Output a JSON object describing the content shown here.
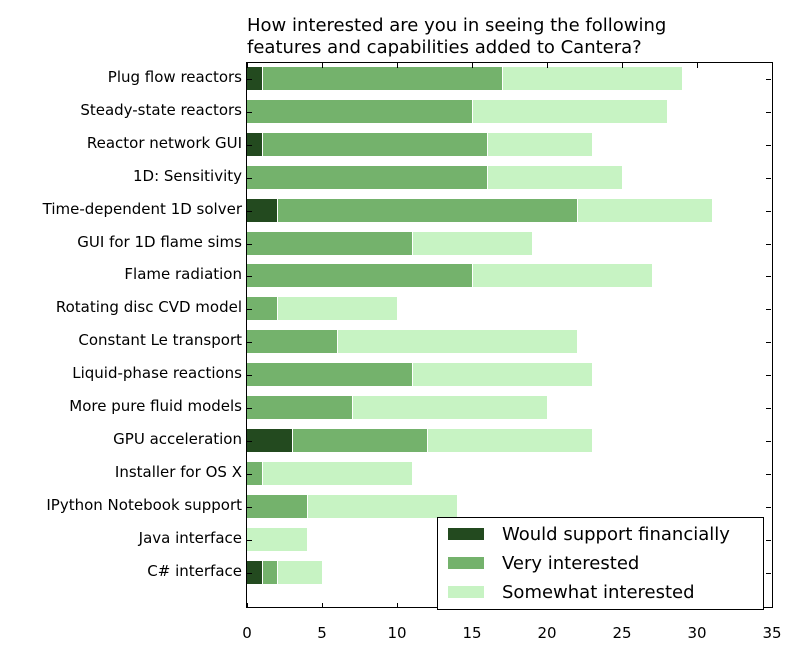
{
  "chart_data": {
    "type": "bar",
    "orientation": "horizontal",
    "stacked": true,
    "title": "How interested are you in seeing the following\nfeatures and capabilities added to Cantera?",
    "xlabel": "",
    "ylabel": "",
    "xlim": [
      0,
      35
    ],
    "xticks": [
      0,
      5,
      10,
      15,
      20,
      25,
      30,
      35
    ],
    "grid": false,
    "legend_position": "lower right",
    "categories": [
      "Plug flow reactors",
      "Steady-state reactors",
      "Reactor network GUI",
      "1D: Sensitivity",
      "Time-dependent 1D solver",
      "GUI for 1D flame sims",
      "Flame radiation",
      "Rotating disc CVD model",
      "Constant Le transport",
      "Liquid-phase reactions",
      "More pure fluid models",
      "GPU acceleration",
      "Installer for OS X",
      "IPython Notebook support",
      "Java interface",
      "C# interface"
    ],
    "series": [
      {
        "name": "Would support financially",
        "color": "#234a1f",
        "values": [
          1,
          0,
          1,
          0,
          2,
          0,
          0,
          0,
          0,
          0,
          0,
          3,
          0,
          0,
          0,
          1
        ]
      },
      {
        "name": "Very interested",
        "color": "#74b26c",
        "values": [
          16,
          15,
          15,
          16,
          20,
          11,
          15,
          2,
          6,
          11,
          7,
          9,
          1,
          4,
          0,
          1
        ]
      },
      {
        "name": "Somewhat interested",
        "color": "#c7f3c3",
        "values": [
          12,
          13,
          7,
          9,
          9,
          8,
          12,
          8,
          16,
          12,
          13,
          11,
          10,
          10,
          4,
          3
        ]
      }
    ]
  }
}
